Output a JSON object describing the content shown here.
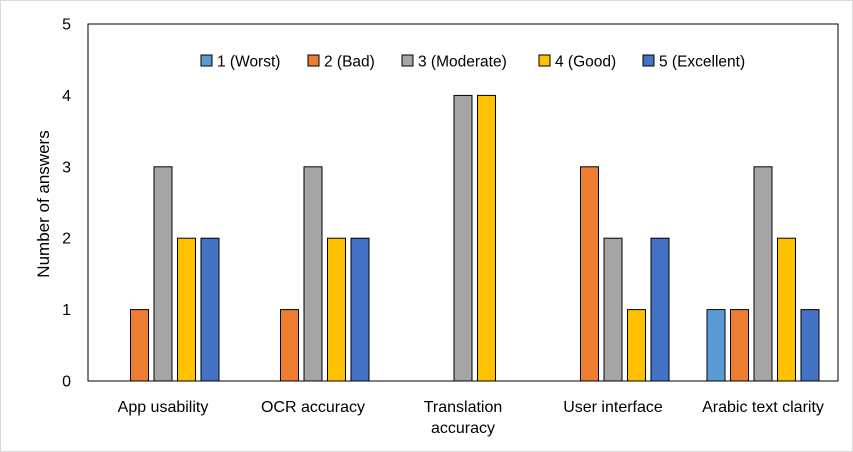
{
  "chart_data": {
    "type": "bar",
    "categories": [
      [
        "App usability"
      ],
      [
        "OCR accuracy"
      ],
      [
        "Translation",
        "accuracy"
      ],
      [
        "User interface"
      ],
      [
        "Arabic text clarity"
      ]
    ],
    "series": [
      {
        "name": "1 (Worst)",
        "color": "#5B9BD5",
        "values": [
          0,
          0,
          0,
          0,
          1
        ]
      },
      {
        "name": "2 (Bad)",
        "color": "#ED7D31",
        "values": [
          1,
          1,
          0,
          3,
          1
        ]
      },
      {
        "name": "3 (Moderate)",
        "color": "#A5A5A5",
        "values": [
          3,
          3,
          4,
          2,
          3
        ]
      },
      {
        "name": "4 (Good)",
        "color": "#FFC000",
        "values": [
          2,
          2,
          4,
          1,
          2
        ]
      },
      {
        "name": "5 (Excellent)",
        "color": "#4472C4",
        "values": [
          2,
          2,
          0,
          2,
          1
        ]
      }
    ],
    "yticks": [
      "0",
      "1",
      "2",
      "3",
      "4",
      "5"
    ],
    "ylim": [
      0,
      5
    ],
    "xlabel": "",
    "ylabel": "Number of answers",
    "legend_position": "top-center",
    "grid": false
  }
}
